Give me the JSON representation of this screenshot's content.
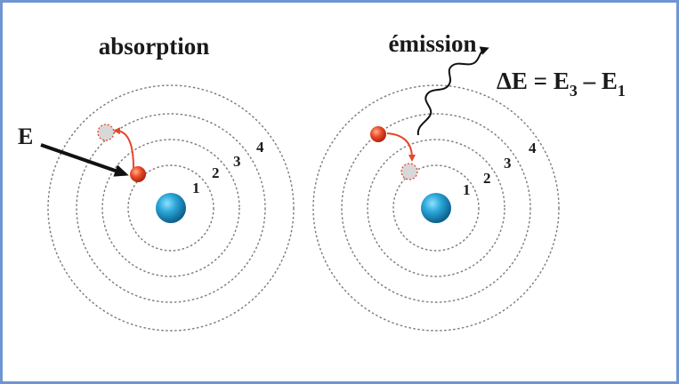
{
  "colors": {
    "frame": "#6f95d2",
    "nucleus": "#1f8fbf",
    "electron": "#e8462a",
    "transition_arrow": "#e8462a",
    "ghost_electron": "#c9c9c9",
    "incoming_arrow": "#111111",
    "orbit": "#7a7a7a"
  },
  "absorption": {
    "title": "absorption",
    "energy_label": "E",
    "levels": [
      "1",
      "2",
      "3",
      "4"
    ]
  },
  "emission": {
    "title": "émission",
    "formula": {
      "prefix": "ΔE = E",
      "sub1": "3",
      "middle": " – E",
      "sub2": "1"
    },
    "levels": [
      "1",
      "2",
      "3",
      "4"
    ]
  },
  "icons": {
    "nucleus": "blue-sphere",
    "electron": "red-sphere",
    "photon": "wavy-arrow"
  }
}
